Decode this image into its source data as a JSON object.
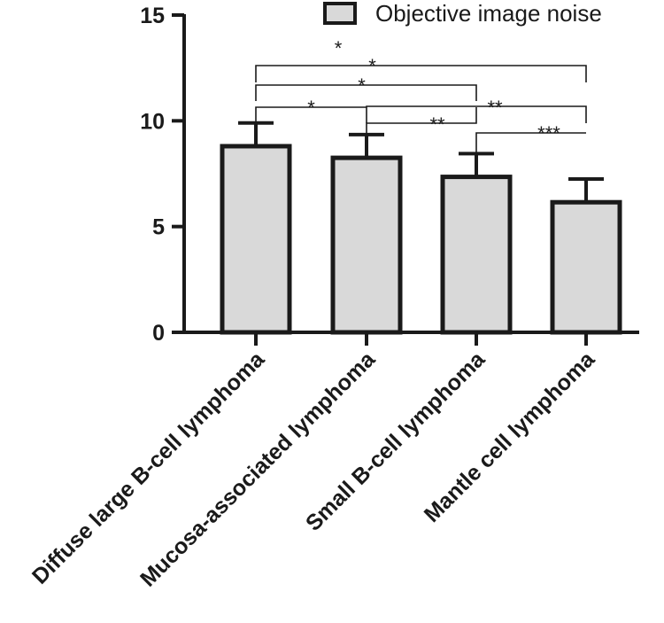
{
  "chart_data": {
    "type": "bar",
    "categories": [
      "Diffuse large B-cell lymphoma",
      "Mucosa-associated lymphoma",
      "Small B-cell lymphoma",
      "Mantle cell lymphoma"
    ],
    "series": [
      {
        "name": "Objective image noise",
        "values": [
          8.8,
          8.25,
          7.35,
          6.15
        ],
        "error": [
          1.1,
          1.1,
          1.1,
          1.1
        ]
      }
    ],
    "ylim": [
      0,
      15
    ],
    "yticks": [
      "0",
      "5",
      "10",
      "15"
    ],
    "legend_position": "top",
    "bar_color": "#d9d9d9",
    "edge_color": "#1a1a1a",
    "significance": [
      {
        "from": 0,
        "to": 1,
        "label": "*"
      },
      {
        "from": 1,
        "to": 2,
        "label": "**"
      },
      {
        "from": 2,
        "to": 3,
        "label": "***"
      },
      {
        "from": 1,
        "to": 3,
        "label": "**"
      },
      {
        "from": 0,
        "to": 2,
        "label": "*"
      },
      {
        "from": 0,
        "to": 3,
        "label": "*"
      }
    ]
  }
}
